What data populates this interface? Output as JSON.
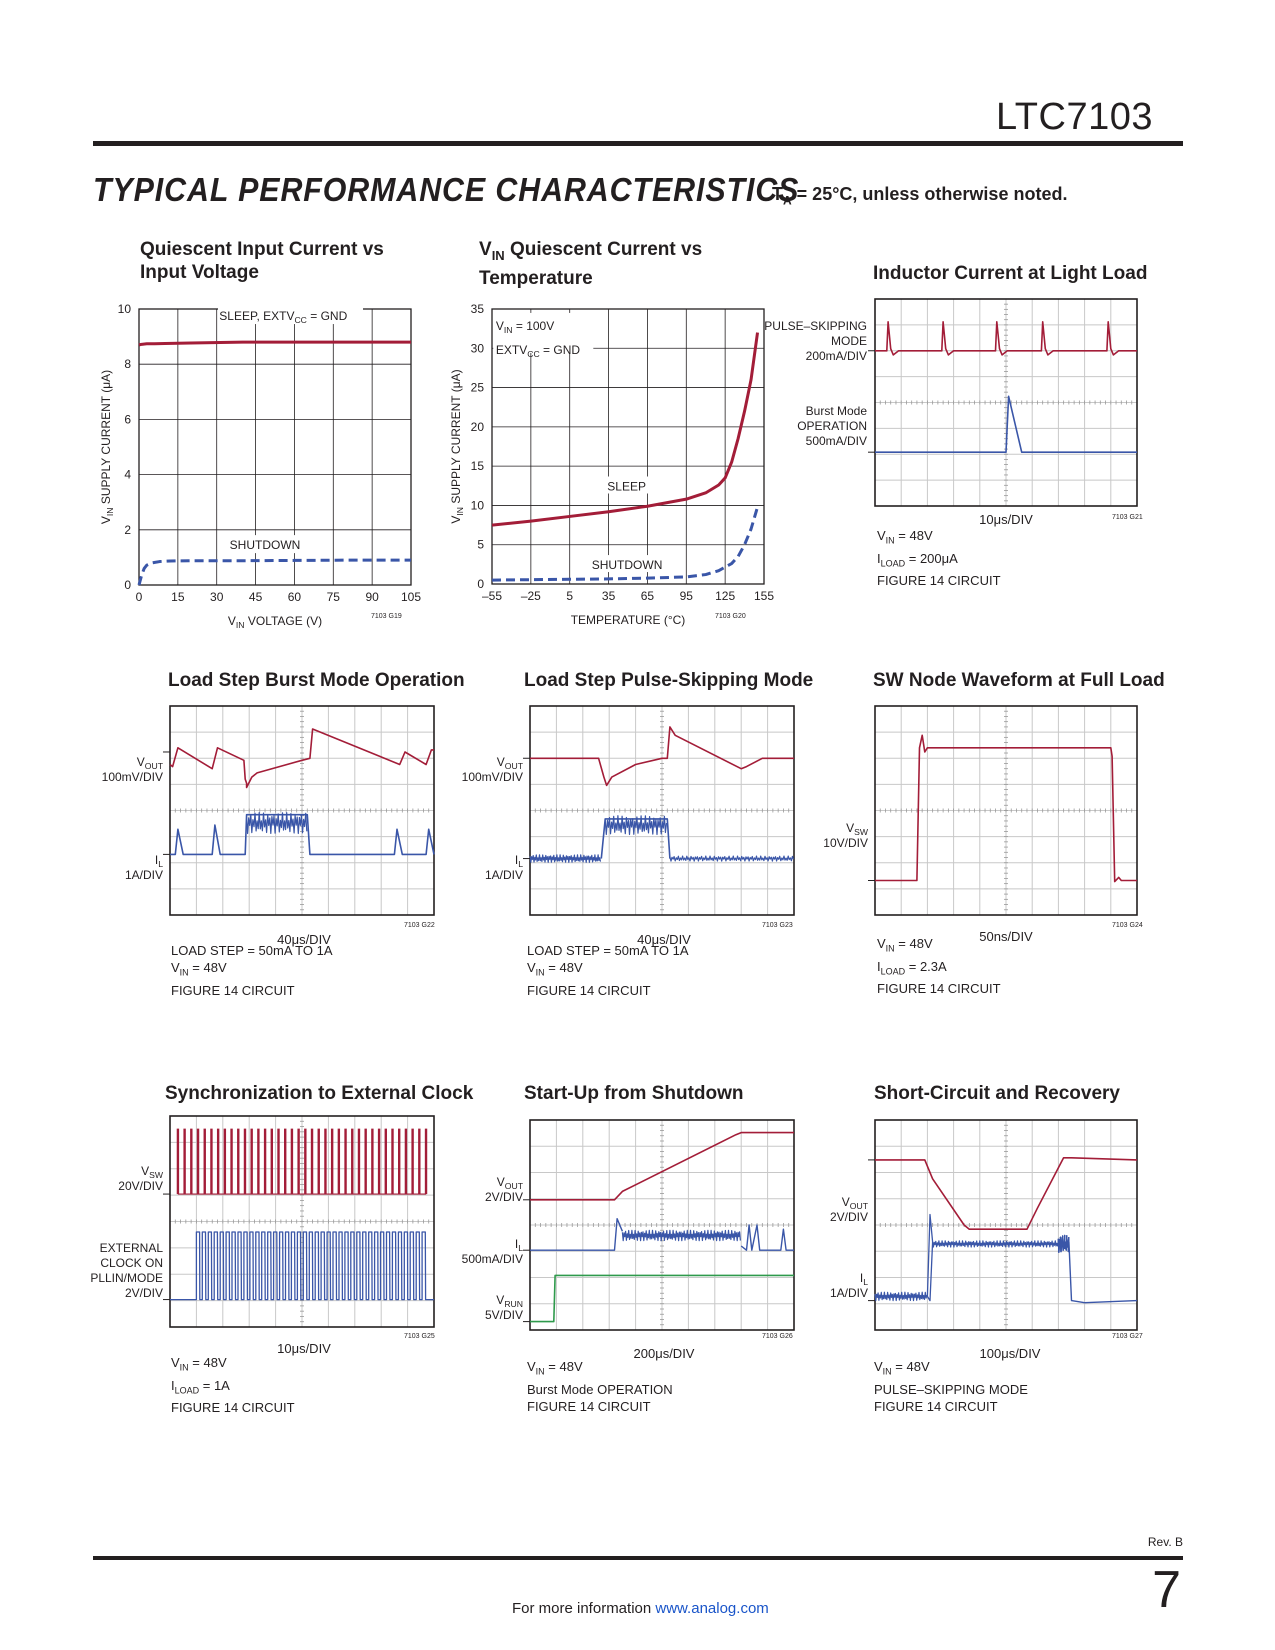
{
  "header": {
    "part_number": "LTC7103",
    "section_title": "TYPICAL PERFORMANCE CHARACTERISTICS",
    "conditions": "Tₐ = 25°C, unless otherwise noted."
  },
  "footer": {
    "rev": "Rev. B",
    "page_number": "7",
    "more_info": "For more information",
    "link": "www.analog.com"
  },
  "colors": {
    "red": "#a31d38",
    "blue": "#3a56a8",
    "green": "#2f9a4c",
    "grid": "#c8c8c8",
    "axis": "#231f20"
  },
  "chart_data": [
    {
      "type": "line",
      "title": "Quiescent Input Current vs Input Voltage",
      "xlabel": "VIN VOLTAGE (V)",
      "ylabel": "VIN SUPPLY CURRENT (μA)",
      "xlim": [
        0,
        105
      ],
      "ylim": [
        0,
        10
      ],
      "xticks": [
        0,
        15,
        30,
        45,
        60,
        75,
        90,
        105
      ],
      "yticks": [
        0,
        2,
        4,
        6,
        8,
        10
      ],
      "figure_id": "7103 G19",
      "series": [
        {
          "name": "SLEEP, EXTVCC = GND",
          "style": "solid",
          "color": "red",
          "x": [
            0,
            1,
            3,
            6,
            10,
            20,
            40,
            60,
            80,
            105
          ],
          "y": [
            8.7,
            8.72,
            8.74,
            8.74,
            8.75,
            8.77,
            8.8,
            8.8,
            8.8,
            8.8
          ]
        },
        {
          "name": "SHUTDOWN",
          "style": "dashed",
          "color": "blue",
          "x": [
            0,
            1,
            2,
            3,
            5,
            8,
            12,
            20,
            40,
            60,
            80,
            105
          ],
          "y": [
            0,
            0.35,
            0.6,
            0.72,
            0.8,
            0.85,
            0.87,
            0.88,
            0.88,
            0.89,
            0.9,
            0.9
          ]
        }
      ]
    },
    {
      "type": "line",
      "title": "VIN Quiescent Current vs Temperature",
      "xlabel": "TEMPERATURE (°C)",
      "ylabel": "VIN SUPPLY CURRENT (μA)",
      "xlim": [
        -55,
        155
      ],
      "ylim": [
        0,
        35
      ],
      "xticks": [
        -55,
        -25,
        5,
        35,
        65,
        95,
        125,
        155
      ],
      "xtick_labels": [
        "–55",
        "–25",
        "5",
        "35",
        "65",
        "95",
        "125",
        "155"
      ],
      "yticks": [
        0,
        5,
        10,
        15,
        20,
        25,
        30,
        35
      ],
      "annotation": [
        "VIN = 100V",
        "EXTVCC = GND"
      ],
      "figure_id": "7103 G20",
      "series": [
        {
          "name": "SLEEP",
          "style": "solid",
          "color": "red",
          "x": [
            -55,
            -25,
            5,
            35,
            65,
            95,
            110,
            120,
            125,
            130,
            135,
            140,
            145,
            150
          ],
          "y": [
            7.5,
            8.0,
            8.6,
            9.2,
            9.9,
            10.8,
            11.6,
            12.6,
            13.5,
            15.5,
            18.5,
            22.0,
            26.0,
            32.0
          ]
        },
        {
          "name": "SHUTDOWN",
          "style": "dashed",
          "color": "blue",
          "x": [
            -55,
            -25,
            5,
            35,
            65,
            95,
            110,
            120,
            130,
            135,
            140,
            145,
            150
          ],
          "y": [
            0.5,
            0.55,
            0.6,
            0.65,
            0.75,
            0.9,
            1.2,
            1.7,
            2.6,
            3.5,
            5.0,
            7.0,
            9.8
          ]
        }
      ]
    },
    {
      "type": "line",
      "title": "Inductor Current at Light Load",
      "xlabel": "10μs/DIV",
      "channels": [
        {
          "label": [
            "PULSE–SKIPPING",
            "MODE",
            "200mA/DIV"
          ],
          "color": "red"
        },
        {
          "label": [
            "Burst Mode",
            "OPERATION",
            "500mA/DIV"
          ],
          "color": "blue"
        }
      ],
      "notes": [
        "VIN = 48V",
        "ILOAD = 200μA",
        "FIGURE 14 CIRCUIT"
      ],
      "figure_id": "7103 G21"
    },
    {
      "type": "line",
      "title": "Load Step Burst Mode Operation",
      "xlabel": "40μs/DIV",
      "channels": [
        {
          "label": [
            "VOUT",
            "100mV/DIV"
          ],
          "color": "red"
        },
        {
          "label": [
            "IL",
            "1A/DIV"
          ],
          "color": "blue"
        }
      ],
      "notes": [
        "LOAD STEP = 50mA TO 1A",
        "VIN = 48V",
        "FIGURE 14 CIRCUIT"
      ],
      "figure_id": "7103 G22"
    },
    {
      "type": "line",
      "title": "Load Step Pulse-Skipping Mode",
      "xlabel": "40μs/DIV",
      "channels": [
        {
          "label": [
            "VOUT",
            "100mV/DIV"
          ],
          "color": "red"
        },
        {
          "label": [
            "IL",
            "1A/DIV"
          ],
          "color": "blue"
        }
      ],
      "notes": [
        "LOAD STEP = 50mA TO 1A",
        "VIN = 48V",
        "FIGURE 14 CIRCUIT"
      ],
      "figure_id": "7103 G23"
    },
    {
      "type": "line",
      "title": "SW Node Waveform at Full Load",
      "xlabel": "50ns/DIV",
      "channels": [
        {
          "label": [
            "VSW",
            "10V/DIV"
          ],
          "color": "red"
        }
      ],
      "notes": [
        "VIN = 48V",
        "ILOAD = 2.3A",
        "FIGURE 14 CIRCUIT"
      ],
      "figure_id": "7103 G24"
    },
    {
      "type": "line",
      "title": "Synchronization to External Clock",
      "xlabel": "10μs/DIV",
      "channels": [
        {
          "label": [
            "VSW",
            "20V/DIV"
          ],
          "color": "red"
        },
        {
          "label": [
            "EXTERNAL",
            "CLOCK ON",
            "PLLIN/MODE",
            "2V/DIV"
          ],
          "color": "blue"
        }
      ],
      "notes": [
        "VIN = 48V",
        "ILOAD = 1A",
        "FIGURE 14 CIRCUIT"
      ],
      "figure_id": "7103 G25"
    },
    {
      "type": "line",
      "title": "Start-Up from Shutdown",
      "xlabel": "200μs/DIV",
      "channels": [
        {
          "label": [
            "VOUT",
            "2V/DIV"
          ],
          "color": "red"
        },
        {
          "label": [
            "IL",
            "500mA/DIV"
          ],
          "color": "blue"
        },
        {
          "label": [
            "VRUN",
            "5V/DIV"
          ],
          "color": "green"
        }
      ],
      "notes": [
        "VIN = 48V",
        "Burst Mode OPERATION",
        "FIGURE 14 CIRCUIT"
      ],
      "figure_id": "7103 G26"
    },
    {
      "type": "line",
      "title": "Short-Circuit and Recovery",
      "xlabel": "100μs/DIV",
      "channels": [
        {
          "label": [
            "VOUT",
            "2V/DIV"
          ],
          "color": "red"
        },
        {
          "label": [
            "IL",
            "1A/DIV"
          ],
          "color": "blue"
        }
      ],
      "notes": [
        "VIN = 48V",
        "PULSE–SKIPPING MODE",
        "FIGURE 14 CIRCUIT"
      ],
      "figure_id": "7103 G27"
    }
  ]
}
